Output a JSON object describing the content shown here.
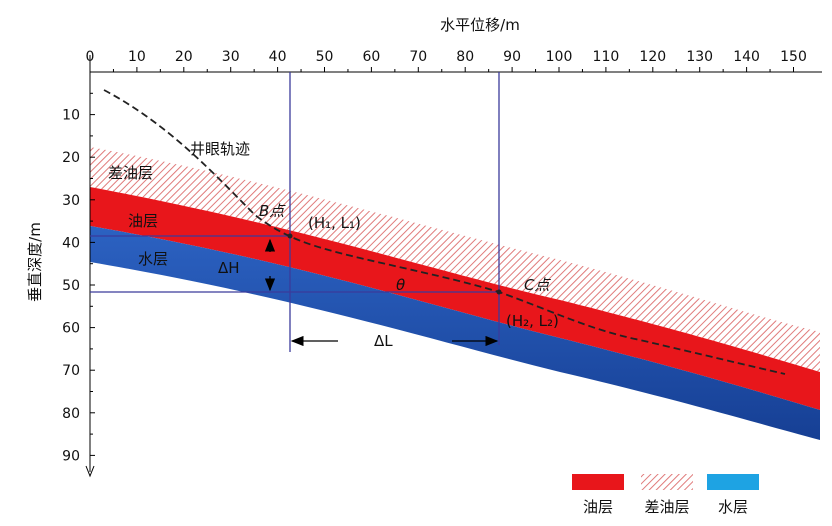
{
  "x_axis": {
    "title": "水平位移/m",
    "ticks": [
      "0",
      "10",
      "20",
      "30",
      "40",
      "50",
      "60",
      "70",
      "80",
      "90",
      "100",
      "110",
      "120",
      "130",
      "140",
      "150"
    ]
  },
  "y_axis": {
    "title": "垂直深度/m",
    "ticks": [
      "10",
      "20",
      "30",
      "40",
      "50",
      "60",
      "70",
      "80",
      "90"
    ]
  },
  "labels": {
    "trajectory": "井眼轨迹",
    "poor_oil_layer": "差油层",
    "oil_layer": "油层",
    "water_layer": "水层",
    "point_b": "B点",
    "point_b_coord": "(H₁, L₁)",
    "point_c": "C点",
    "point_c_coord": "(H₂, L₂)",
    "delta_h": "ΔH",
    "delta_l": "ΔL",
    "theta": "θ"
  },
  "legend": {
    "oil": "油层",
    "poor_oil": "差油层",
    "water": "水层"
  },
  "colors": {
    "oil": "#e8161b",
    "poor_oil_hatch": "#e07b7b",
    "water": "#1f4fa8",
    "guide": "#3b3b9b"
  }
}
